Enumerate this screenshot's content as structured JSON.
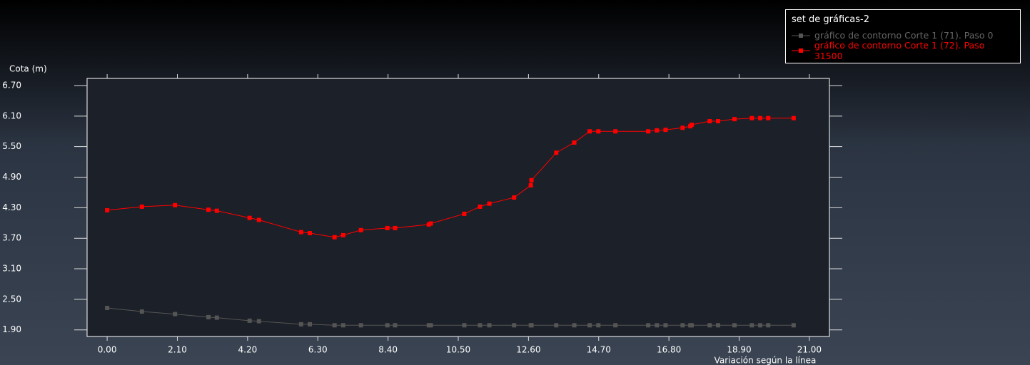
{
  "chart_data": {
    "type": "line",
    "y_label": "Cota (m)",
    "x_label": "Variación según la línea",
    "legend_title": "set de gráficas-2",
    "x": [
      0,
      1.04,
      2.03,
      3.03,
      3.28,
      4.26,
      4.54,
      5.8,
      6.06,
      6.8,
      7.06,
      7.59,
      8.38,
      8.61,
      9.62,
      9.68,
      10.68,
      11.15,
      11.43,
      12.17,
      12.67,
      12.69,
      13.43,
      13.97,
      14.43,
      14.69,
      15.2,
      16.18,
      16.44,
      16.7,
      17.21,
      17.44,
      17.48,
      18.02,
      18.27,
      18.76,
      19.28,
      19.53,
      19.77,
      20.53
    ],
    "series": [
      {
        "name": "gráfico de contorno Corte 1 (71). Paso 0",
        "color": "#555555",
        "values": [
          2.33,
          2.26,
          2.21,
          2.15,
          2.14,
          2.08,
          2.07,
          2.01,
          2.01,
          1.99,
          1.99,
          1.99,
          1.99,
          1.99,
          1.99,
          1.99,
          1.99,
          1.99,
          1.99,
          1.99,
          1.99,
          1.99,
          1.99,
          1.99,
          1.99,
          1.99,
          1.99,
          1.99,
          1.99,
          1.99,
          1.99,
          1.99,
          1.99,
          1.99,
          1.99,
          1.99,
          1.99,
          1.99,
          1.99,
          1.99
        ]
      },
      {
        "name": "gráfico de contorno Corte 1 (72). Paso 31500",
        "color": "#ff0000",
        "values": [
          4.25,
          4.32,
          4.35,
          4.26,
          4.24,
          4.1,
          4.06,
          3.82,
          3.8,
          3.72,
          3.76,
          3.86,
          3.9,
          3.9,
          3.97,
          3.99,
          4.18,
          4.32,
          4.38,
          4.5,
          4.74,
          4.84,
          5.38,
          5.58,
          5.8,
          5.8,
          5.8,
          5.8,
          5.82,
          5.83,
          5.87,
          5.9,
          5.93,
          6.0,
          6.0,
          6.04,
          6.06,
          6.06,
          6.06,
          6.06
        ]
      }
    ],
    "xlim": [
      -0.6,
      21.6
    ],
    "ylim": [
      1.77,
      6.84
    ],
    "xticks": [
      {
        "value": 0,
        "label": "0.00"
      },
      {
        "value": 2.1,
        "label": "2.10"
      },
      {
        "value": 4.2,
        "label": "4.20"
      },
      {
        "value": 6.3,
        "label": "6.30"
      },
      {
        "value": 8.4,
        "label": "8.40"
      },
      {
        "value": 10.5,
        "label": "10.50"
      },
      {
        "value": 12.6,
        "label": "12.60"
      },
      {
        "value": 14.7,
        "label": "14.70"
      },
      {
        "value": 16.8,
        "label": "16.80"
      },
      {
        "value": 18.9,
        "label": "18.90"
      },
      {
        "value": 21,
        "label": "21.00"
      }
    ],
    "yticks": [
      {
        "value": 1.9,
        "label": "1.90"
      },
      {
        "value": 2.5,
        "label": "2.50"
      },
      {
        "value": 3.1,
        "label": "3.10"
      },
      {
        "value": 3.7,
        "label": "3.70"
      },
      {
        "value": 4.3,
        "label": "4.30"
      },
      {
        "value": 4.9,
        "label": "4.90"
      },
      {
        "value": 5.5,
        "label": "5.50"
      },
      {
        "value": 6.1,
        "label": "6.10"
      },
      {
        "value": 6.7,
        "label": "6.70"
      }
    ]
  }
}
